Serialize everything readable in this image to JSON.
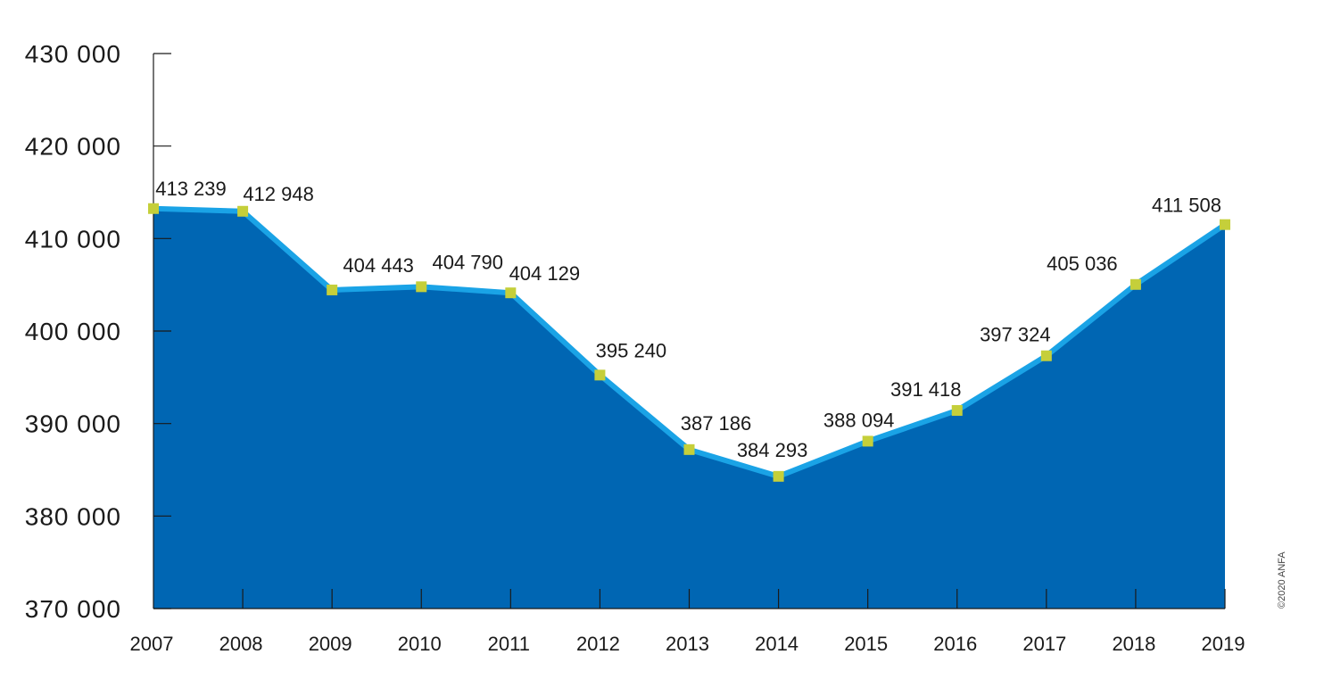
{
  "chart_data": {
    "type": "area",
    "title": "",
    "xlabel": "",
    "ylabel": "",
    "x": [
      "2007",
      "2008",
      "2009",
      "2010",
      "2011",
      "2012",
      "2013",
      "2014",
      "2015",
      "2016",
      "2017",
      "2018",
      "2019"
    ],
    "series": [
      {
        "values": [
          413239,
          412948,
          404443,
          404790,
          404129,
          395240,
          387186,
          384293,
          388094,
          391418,
          397324,
          405036,
          411508
        ],
        "labels": [
          "413 239",
          "412 948",
          "404 443",
          "404 790",
          "404 129",
          "395 240",
          "387 186",
          "384 293",
          "388 094",
          "391 418",
          "397 324",
          "405 036",
          "411 508"
        ]
      }
    ],
    "ylim": [
      370000,
      430000
    ],
    "yticks": [
      370000,
      380000,
      390000,
      400000,
      410000,
      420000,
      430000
    ],
    "ytick_labels": [
      "370 000",
      "380 000",
      "390 000",
      "400 000",
      "410 000",
      "420 000",
      "430 000"
    ],
    "highlight_last_label": true,
    "grid": false,
    "colors": {
      "area_fill": "#0066b3",
      "line": "#1aa3e6",
      "marker": "#c5cf3a",
      "label": "#1a1a1a",
      "highlight_label": "#e2231a",
      "axis": "#1a1a1a"
    }
  },
  "copyright": "©2020 ANFA"
}
